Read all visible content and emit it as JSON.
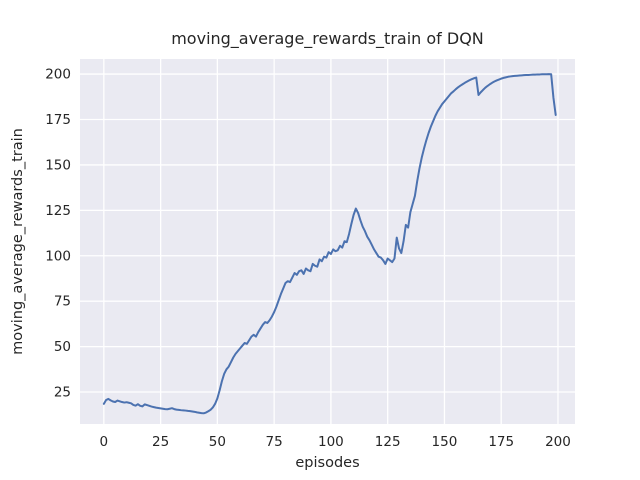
{
  "chart_data": {
    "type": "line",
    "title": "moving_average_rewards_train of DQN",
    "xlabel": "episodes",
    "ylabel": "moving_average_rewards_train",
    "x_ticks": [
      0,
      25,
      50,
      75,
      100,
      125,
      150,
      175,
      200
    ],
    "y_ticks": [
      25,
      50,
      75,
      100,
      125,
      150,
      175,
      200
    ],
    "xlim": [
      -10.5,
      207.5
    ],
    "ylim": [
      7.4,
      208.3
    ],
    "grid": "on",
    "legend": "none",
    "colors": {
      "line": "#4c72b0",
      "axes_background": "#eaeaf2",
      "gridline": "#ffffff",
      "figure_background": "#ffffff",
      "text": "#262626"
    },
    "series": [
      {
        "name": "moving_average_rewards_train",
        "points": [
          [
            0,
            18.5
          ],
          [
            1,
            20.6
          ],
          [
            2,
            21.2
          ],
          [
            3,
            20.4
          ],
          [
            4,
            19.8
          ],
          [
            5,
            19.5
          ],
          [
            6,
            20.3
          ],
          [
            7,
            19.9
          ],
          [
            8,
            19.5
          ],
          [
            9,
            19.2
          ],
          [
            10,
            19.4
          ],
          [
            11,
            19.1
          ],
          [
            12,
            18.8
          ],
          [
            13,
            17.9
          ],
          [
            14,
            17.5
          ],
          [
            15,
            18.3
          ],
          [
            16,
            17.4
          ],
          [
            17,
            17.1
          ],
          [
            18,
            18.2
          ],
          [
            19,
            17.8
          ],
          [
            20,
            17.4
          ],
          [
            21,
            17.0
          ],
          [
            22,
            16.7
          ],
          [
            23,
            16.4
          ],
          [
            24,
            16.2
          ],
          [
            25,
            16.0
          ],
          [
            26,
            15.8
          ],
          [
            27,
            15.6
          ],
          [
            28,
            15.5
          ],
          [
            29,
            15.8
          ],
          [
            30,
            16.1
          ],
          [
            31,
            15.6
          ],
          [
            32,
            15.3
          ],
          [
            33,
            15.2
          ],
          [
            34,
            15.0
          ],
          [
            35,
            14.9
          ],
          [
            36,
            14.8
          ],
          [
            37,
            14.6
          ],
          [
            38,
            14.5
          ],
          [
            39,
            14.3
          ],
          [
            40,
            14.1
          ],
          [
            41,
            13.8
          ],
          [
            42,
            13.6
          ],
          [
            43,
            13.4
          ],
          [
            44,
            13.3
          ],
          [
            45,
            13.7
          ],
          [
            46,
            14.4
          ],
          [
            47,
            15.2
          ],
          [
            48,
            16.5
          ],
          [
            49,
            18.5
          ],
          [
            50,
            21.5
          ],
          [
            51,
            26.0
          ],
          [
            52,
            31.0
          ],
          [
            53,
            35.0
          ],
          [
            54,
            37.5
          ],
          [
            55,
            39.0
          ],
          [
            56,
            41.5
          ],
          [
            57,
            44.0
          ],
          [
            58,
            46.0
          ],
          [
            59,
            47.5
          ],
          [
            60,
            49.0
          ],
          [
            61,
            50.5
          ],
          [
            62,
            52.0
          ],
          [
            63,
            51.5
          ],
          [
            64,
            53.5
          ],
          [
            65,
            55.5
          ],
          [
            66,
            56.5
          ],
          [
            67,
            55.5
          ],
          [
            68,
            58.0
          ],
          [
            69,
            60.0
          ],
          [
            70,
            62.0
          ],
          [
            71,
            63.5
          ],
          [
            72,
            63.0
          ],
          [
            73,
            64.5
          ],
          [
            74,
            66.5
          ],
          [
            75,
            69.0
          ],
          [
            76,
            72.0
          ],
          [
            77,
            75.5
          ],
          [
            78,
            79.0
          ],
          [
            79,
            82.0
          ],
          [
            80,
            85.0
          ],
          [
            81,
            86.0
          ],
          [
            82,
            85.5
          ],
          [
            83,
            88.0
          ],
          [
            84,
            90.5
          ],
          [
            85,
            89.5
          ],
          [
            86,
            91.5
          ],
          [
            87,
            92.0
          ],
          [
            88,
            90.0
          ],
          [
            89,
            93.0
          ],
          [
            90,
            92.0
          ],
          [
            91,
            91.5
          ],
          [
            92,
            95.5
          ],
          [
            93,
            94.5
          ],
          [
            94,
            94.0
          ],
          [
            95,
            98.0
          ],
          [
            96,
            97.0
          ],
          [
            97,
            99.5
          ],
          [
            98,
            99.0
          ],
          [
            99,
            102.0
          ],
          [
            100,
            101.0
          ],
          [
            101,
            103.5
          ],
          [
            102,
            102.5
          ],
          [
            103,
            103.0
          ],
          [
            104,
            105.5
          ],
          [
            105,
            104.5
          ],
          [
            106,
            108.0
          ],
          [
            107,
            107.5
          ],
          [
            108,
            112.0
          ],
          [
            109,
            117.5
          ],
          [
            110,
            122.5
          ],
          [
            111,
            126.0
          ],
          [
            112,
            123.5
          ],
          [
            113,
            119.5
          ],
          [
            114,
            116.0
          ],
          [
            115,
            113.5
          ],
          [
            116,
            110.5
          ],
          [
            117,
            108.5
          ],
          [
            118,
            106.0
          ],
          [
            119,
            103.5
          ],
          [
            120,
            101.5
          ],
          [
            121,
            99.5
          ],
          [
            122,
            99.0
          ],
          [
            123,
            97.5
          ],
          [
            124,
            95.5
          ],
          [
            125,
            98.5
          ],
          [
            126,
            97.5
          ],
          [
            127,
            96.5
          ],
          [
            128,
            98.5
          ],
          [
            129,
            110.0
          ],
          [
            130,
            104.0
          ],
          [
            131,
            101.5
          ],
          [
            132,
            108.0
          ],
          [
            133,
            117.0
          ],
          [
            134,
            115.5
          ],
          [
            135,
            124.0
          ],
          [
            136,
            128.5
          ],
          [
            137,
            133.0
          ],
          [
            138,
            141.0
          ],
          [
            139,
            148.0
          ],
          [
            140,
            154.0
          ],
          [
            141,
            159.0
          ],
          [
            142,
            163.5
          ],
          [
            143,
            167.5
          ],
          [
            144,
            171.0
          ],
          [
            145,
            174.0
          ],
          [
            146,
            177.0
          ],
          [
            147,
            179.5
          ],
          [
            148,
            181.5
          ],
          [
            149,
            183.5
          ],
          [
            150,
            185.0
          ],
          [
            151,
            186.5
          ],
          [
            152,
            188.0
          ],
          [
            153,
            189.5
          ],
          [
            154,
            190.5
          ],
          [
            155,
            191.7
          ],
          [
            156,
            192.7
          ],
          [
            157,
            193.6
          ],
          [
            158,
            194.4
          ],
          [
            159,
            195.2
          ],
          [
            160,
            195.9
          ],
          [
            161,
            196.6
          ],
          [
            162,
            197.2
          ],
          [
            163,
            197.7
          ],
          [
            164,
            198.1
          ],
          [
            165,
            188.5
          ],
          [
            166,
            190.0
          ],
          [
            167,
            191.3
          ],
          [
            168,
            192.5
          ],
          [
            169,
            193.5
          ],
          [
            170,
            194.4
          ],
          [
            171,
            195.2
          ],
          [
            172,
            195.9
          ],
          [
            173,
            196.5
          ],
          [
            174,
            197.0
          ],
          [
            175,
            197.5
          ],
          [
            176,
            197.9
          ],
          [
            177,
            198.2
          ],
          [
            178,
            198.5
          ],
          [
            179,
            198.7
          ],
          [
            180,
            198.9
          ],
          [
            181,
            199.0
          ],
          [
            182,
            199.1
          ],
          [
            183,
            199.2
          ],
          [
            184,
            199.3
          ],
          [
            185,
            199.4
          ],
          [
            186,
            199.5
          ],
          [
            187,
            199.5
          ],
          [
            188,
            199.6
          ],
          [
            189,
            199.7
          ],
          [
            190,
            199.7
          ],
          [
            191,
            199.8
          ],
          [
            192,
            199.8
          ],
          [
            193,
            199.9
          ],
          [
            194,
            199.9
          ],
          [
            195,
            199.9
          ],
          [
            196,
            200.0
          ],
          [
            197,
            199.9
          ],
          [
            198,
            187.0
          ],
          [
            199,
            177.5
          ]
        ]
      }
    ]
  }
}
